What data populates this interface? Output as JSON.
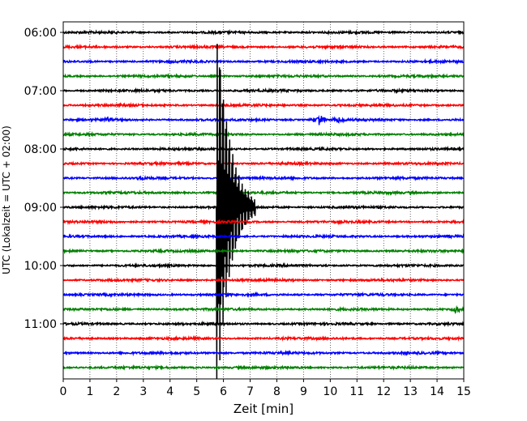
{
  "chart_data": {
    "type": "line",
    "title": "",
    "xlabel": "Zeit  [min]",
    "ylabel": "UTC (Lokalzeit = UTC + 02:00)",
    "xlim": [
      0,
      15
    ],
    "x_ticks": [
      "0",
      "1",
      "2",
      "3",
      "4",
      "5",
      "6",
      "7",
      "8",
      "9",
      "10",
      "11",
      "12",
      "13",
      "14",
      "15"
    ],
    "y_ticks": [
      "06:00",
      "07:00",
      "08:00",
      "09:00",
      "10:00",
      "11:00"
    ],
    "grid": "vertical-dotted",
    "trace_interval_minutes": 15,
    "trace_colors": [
      "#000000",
      "#ff0000",
      "#0000ff",
      "#008000"
    ],
    "series": [
      {
        "start": "06:00"
      },
      {
        "start": "06:15"
      },
      {
        "start": "06:30"
      },
      {
        "start": "06:45"
      },
      {
        "start": "07:00"
      },
      {
        "start": "07:15"
      },
      {
        "start": "07:30",
        "events": [
          {
            "x": 1.7,
            "amp": 0.35
          },
          {
            "x": 9.6,
            "amp": 0.7
          },
          {
            "x": 10.3,
            "amp": 0.3
          }
        ]
      },
      {
        "start": "07:45"
      },
      {
        "start": "08:00"
      },
      {
        "start": "08:15"
      },
      {
        "start": "08:30",
        "events": [
          {
            "x": 2.9,
            "amp": 0.3
          }
        ]
      },
      {
        "start": "08:45"
      },
      {
        "start": "09:00",
        "events": [
          {
            "x": 5.8,
            "amp": 11.0
          }
        ]
      },
      {
        "start": "09:15"
      },
      {
        "start": "09:30"
      },
      {
        "start": "09:45"
      },
      {
        "start": "10:00"
      },
      {
        "start": "10:15"
      },
      {
        "start": "10:30"
      },
      {
        "start": "10:45",
        "events": [
          {
            "x": 14.7,
            "amp": 0.4
          }
        ]
      },
      {
        "start": "11:00"
      },
      {
        "start": "11:15"
      },
      {
        "start": "11:30"
      },
      {
        "start": "11:45"
      }
    ]
  }
}
